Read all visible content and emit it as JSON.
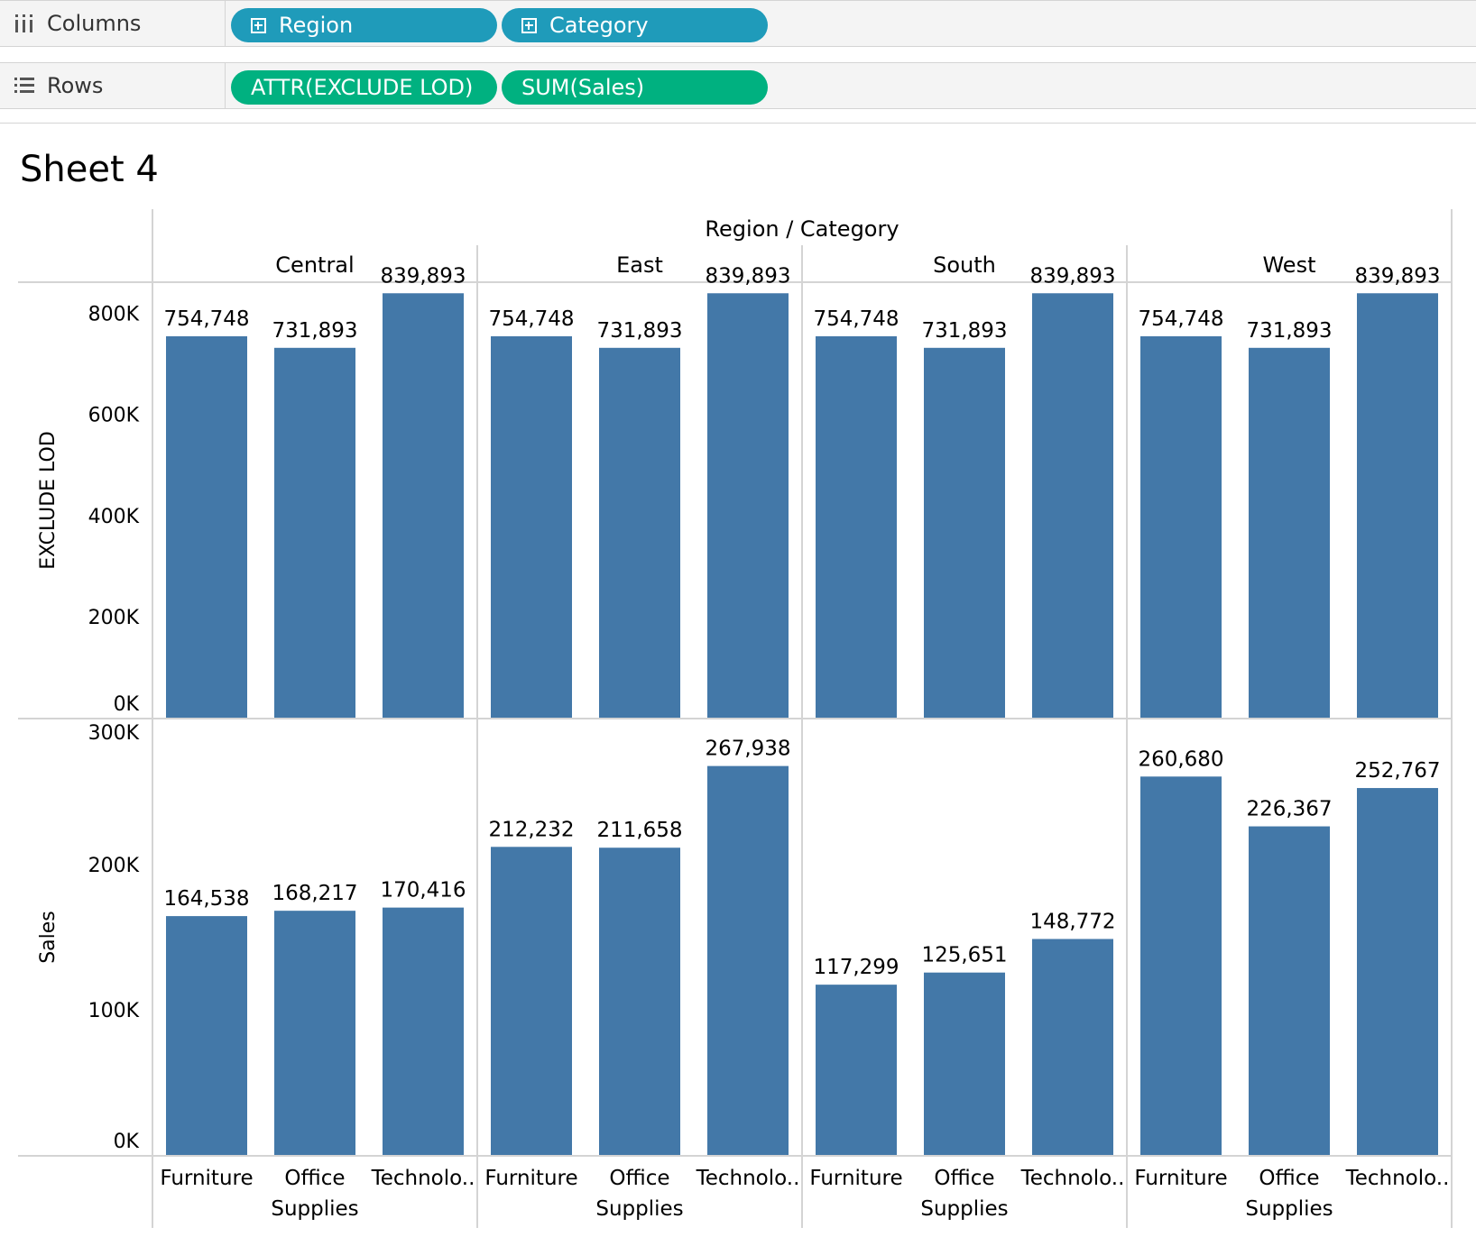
{
  "shelves": {
    "columns": {
      "label": "Columns",
      "pills": [
        "Region",
        "Category"
      ]
    },
    "rows": {
      "label": "Rows",
      "pills": [
        "ATTR(EXCLUDE LOD)",
        "SUM(Sales)"
      ]
    }
  },
  "sheet_title": "Sheet 4",
  "colors": {
    "bar": "#4378a8",
    "dimension_pill": "#1f9bba",
    "measure_pill": "#00b180"
  },
  "chart_data": {
    "type": "bar",
    "header_title": "Region / Category",
    "regions": [
      "Central",
      "East",
      "South",
      "West"
    ],
    "categories": [
      "Furniture",
      "Office Supplies",
      "Technology"
    ],
    "category_labels": [
      [
        "Furniture"
      ],
      [
        "Office",
        "Supplies"
      ],
      [
        "Technolo.."
      ]
    ],
    "rows": [
      {
        "measure": "EXCLUDE LOD",
        "ylabel": "EXCLUDE LOD",
        "ylim": [
          0,
          860000
        ],
        "ticks": [
          0,
          200000,
          400000,
          600000,
          800000
        ],
        "tick_labels": [
          "0K",
          "200K",
          "400K",
          "600K",
          "800K"
        ],
        "values": [
          [
            754748,
            731893,
            839893
          ],
          [
            754748,
            731893,
            839893
          ],
          [
            754748,
            731893,
            839893
          ],
          [
            754748,
            731893,
            839893
          ]
        ],
        "data_labels": [
          [
            "754,748",
            "731,893",
            "839,893"
          ],
          [
            "754,748",
            "731,893",
            "839,893"
          ],
          [
            "754,748",
            "731,893",
            "839,893"
          ],
          [
            "754,748",
            "731,893",
            "839,893"
          ]
        ]
      },
      {
        "measure": "Sales",
        "ylabel": "Sales",
        "ylim": [
          0,
          300000
        ],
        "ticks": [
          0,
          100000,
          200000,
          300000
        ],
        "tick_labels": [
          "0K",
          "100K",
          "200K",
          "300K"
        ],
        "values": [
          [
            164538,
            168217,
            170416
          ],
          [
            212232,
            211658,
            267938
          ],
          [
            117299,
            125651,
            148772
          ],
          [
            260680,
            226367,
            252767
          ]
        ],
        "data_labels": [
          [
            "164,538",
            "168,217",
            "170,416"
          ],
          [
            "212,232",
            "211,658",
            "267,938"
          ],
          [
            "117,299",
            "125,651",
            "148,772"
          ],
          [
            "260,680",
            "226,367",
            "252,767"
          ]
        ]
      }
    ],
    "grid": false,
    "legend": "none"
  }
}
